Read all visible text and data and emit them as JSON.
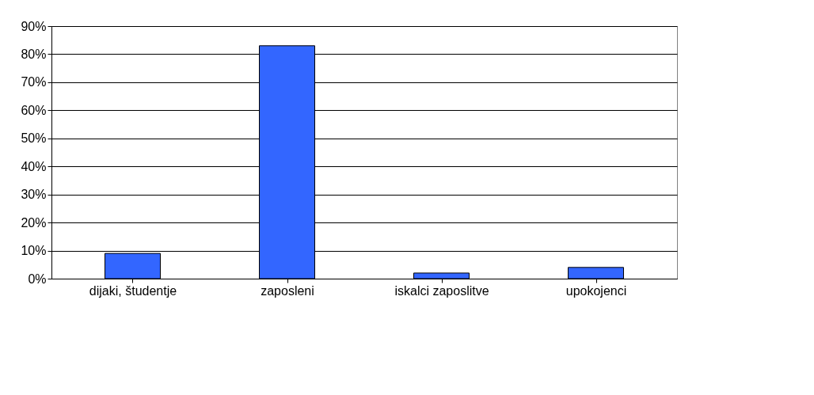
{
  "chart_data": {
    "type": "bar",
    "categories": [
      "dijaki, študentje",
      "zaposleni",
      "iskalci zaposlitve",
      "upokojenci"
    ],
    "values": [
      9,
      83,
      2,
      4
    ],
    "color": "#3366ff",
    "ylim": [
      0,
      90
    ],
    "yticks": [
      {
        "value": 0,
        "label": "0%"
      },
      {
        "value": 10,
        "label": "10%"
      },
      {
        "value": 20,
        "label": "20%"
      },
      {
        "value": 30,
        "label": "30%"
      },
      {
        "value": 40,
        "label": "40%"
      },
      {
        "value": 50,
        "label": "50%"
      },
      {
        "value": 60,
        "label": "60%"
      },
      {
        "value": 70,
        "label": "70%"
      },
      {
        "value": 80,
        "label": "80%"
      },
      {
        "value": 90,
        "label": "90%"
      }
    ],
    "grid": "y"
  }
}
